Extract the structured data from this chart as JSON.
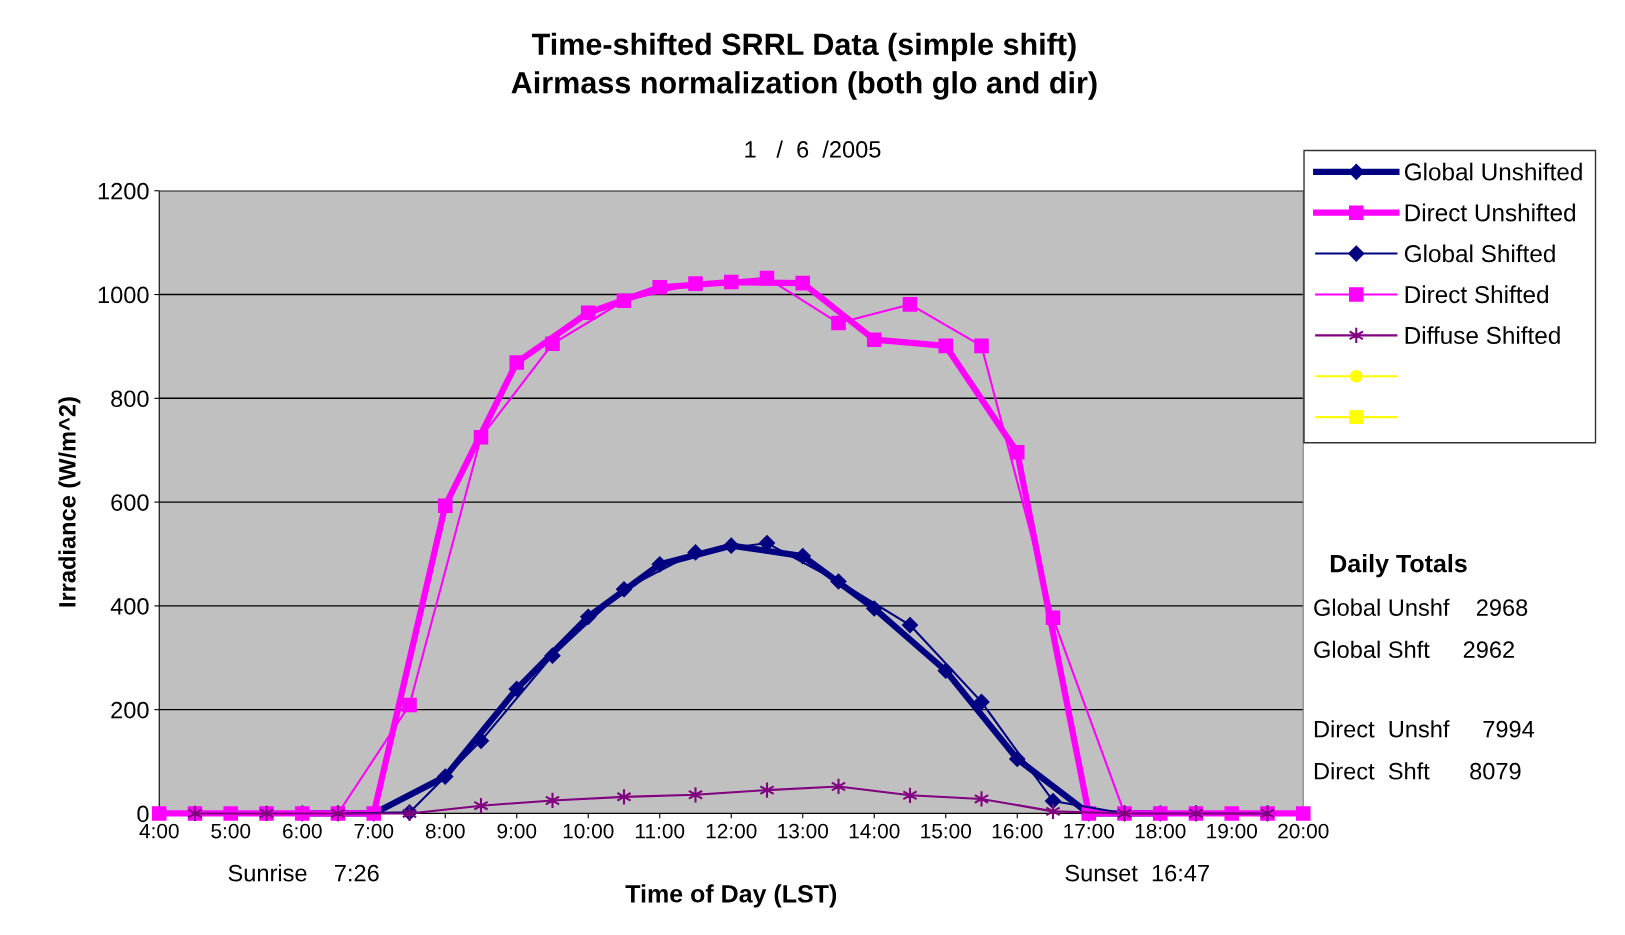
{
  "chart_data": {
    "type": "line",
    "title": "Time-shifted SRRL Data (simple shift)\nAirmass normalization (both glo and dir)",
    "subtitle": "1   /  6  /2005",
    "xlabel": "Time of Day (LST)",
    "ylabel": "Irradiance (W/m^2)",
    "xlim": [
      4,
      20
    ],
    "xticks": [
      {
        "value": 4,
        "label": "4:00"
      },
      {
        "value": 5,
        "label": "5:00"
      },
      {
        "value": 6,
        "label": "6:00"
      },
      {
        "value": 7,
        "label": "7:00"
      },
      {
        "value": 8,
        "label": "8:00"
      },
      {
        "value": 9,
        "label": "9:00"
      },
      {
        "value": 10,
        "label": "10:00"
      },
      {
        "value": 11,
        "label": "11:00"
      },
      {
        "value": 12,
        "label": "12:00"
      },
      {
        "value": 13,
        "label": "13:00"
      },
      {
        "value": 14,
        "label": "14:00"
      },
      {
        "value": 15,
        "label": "15:00"
      },
      {
        "value": 16,
        "label": "16:00"
      },
      {
        "value": 17,
        "label": "17:00"
      },
      {
        "value": 18,
        "label": "18:00"
      },
      {
        "value": 19,
        "label": "19:00"
      },
      {
        "value": 20,
        "label": "20:00"
      }
    ],
    "ylim": [
      0,
      1200
    ],
    "yticks": [
      0,
      200,
      400,
      600,
      800,
      1000,
      1200
    ],
    "grid": "y",
    "legend": "top right",
    "series": [
      {
        "name": "Global Unshifted",
        "color": "#000080",
        "marker": "diamond",
        "x": [
          6,
          7,
          8,
          9,
          10,
          11,
          12,
          13,
          14,
          15,
          16,
          17,
          18
        ],
        "values": [
          0,
          0,
          71,
          240,
          379,
          480,
          516,
          496,
          395,
          275,
          105,
          0,
          0
        ]
      },
      {
        "name": "Direct Unshifted",
        "color": "#ff00ff",
        "marker": "square",
        "x": [
          4,
          5,
          6,
          7,
          8,
          9,
          10,
          11,
          12,
          13,
          14,
          15,
          16,
          17,
          18,
          19,
          20
        ],
        "values": [
          0,
          0,
          0,
          0,
          593,
          869,
          965,
          1014,
          1024,
          1022,
          913,
          901,
          696,
          0,
          0,
          0,
          0
        ]
      },
      {
        "name": "Global Shifted",
        "color": "#000080",
        "marker": "diamond",
        "x": [
          6.5,
          7.5,
          8.5,
          9.5,
          10.5,
          11.5,
          12.5,
          13.5,
          14.5,
          15.5,
          16.5,
          17.5,
          18.5,
          19.5
        ],
        "values": [
          0,
          2,
          140,
          304,
          432,
          503,
          521,
          447,
          363,
          215,
          24,
          0,
          0,
          0
        ]
      },
      {
        "name": "Direct Shifted",
        "color": "#ff00ff",
        "marker": "square",
        "x": [
          4.5,
          5.5,
          6.5,
          7.5,
          8.5,
          9.5,
          10.5,
          11.5,
          12.5,
          13.5,
          14.5,
          15.5,
          16.5,
          17.5,
          18.5,
          19.5
        ],
        "values": [
          0,
          0,
          0,
          209,
          725,
          905,
          988,
          1021,
          1032,
          945,
          981,
          901,
          377,
          0,
          0,
          0
        ]
      },
      {
        "name": "Diffuse Shifted",
        "color": "#800080",
        "marker": "cross",
        "x": [
          4.5,
          5.5,
          6.5,
          7.5,
          8.5,
          9.5,
          10.5,
          11.5,
          12.5,
          13.5,
          14.5,
          15.5,
          16.5,
          17.5,
          18.5,
          19.5
        ],
        "values": [
          0,
          0,
          0,
          0,
          15,
          25,
          32,
          36,
          45,
          52,
          35,
          28,
          4,
          0,
          0,
          0
        ]
      }
    ],
    "annotations": [
      "Sunrise    7:26",
      "Sunset  16:47",
      "Daily Totals",
      "Global Unshf    2968",
      "Global Shft     2962",
      "Direct  Unshf     7994",
      "Direct  Shft      8079"
    ]
  }
}
